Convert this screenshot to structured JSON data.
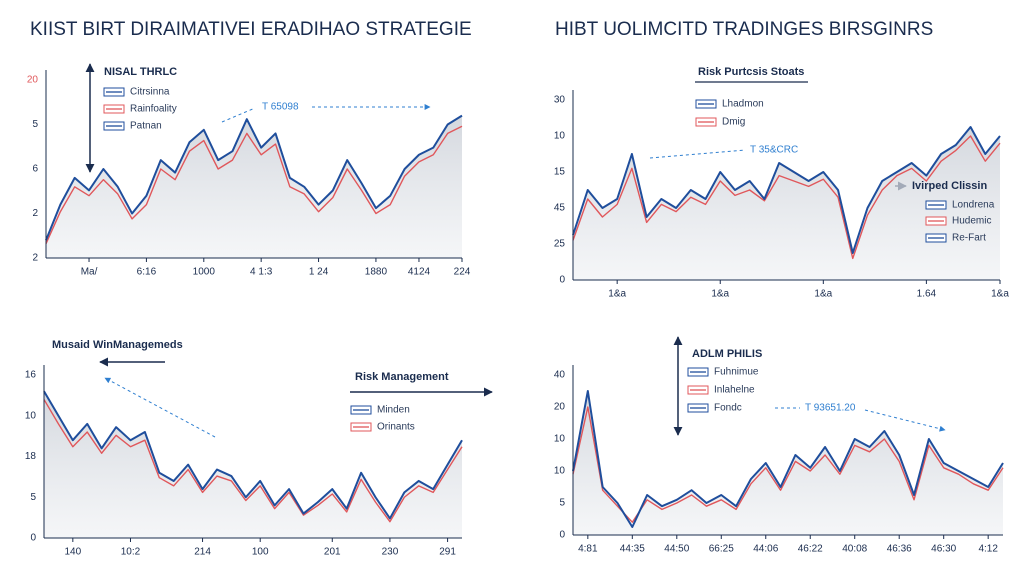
{
  "chart_data": [
    {
      "type": "line",
      "title": "KIIST BIRT DIRAIMATIVEI ERADIHAO STRATEGIE",
      "categories": [
        null,
        null,
        null,
        "Ma/",
        null,
        null,
        null,
        "6:16",
        null,
        null,
        null,
        "1000",
        null,
        null,
        null,
        "4 1:3",
        null,
        null,
        null,
        "1 24",
        null,
        null,
        null,
        "1880",
        null,
        null,
        "4124",
        null,
        null,
        "224"
      ],
      "ylim": [
        0,
        100
      ],
      "y_labels": [
        "20",
        "5",
        "6",
        "2",
        "2"
      ],
      "series": [
        {
          "color": "#1f4e9c",
          "values": [
            10,
            30,
            45,
            38,
            50,
            40,
            25,
            35,
            55,
            48,
            65,
            72,
            55,
            60,
            78,
            62,
            70,
            45,
            40,
            30,
            38,
            55,
            42,
            28,
            35,
            50,
            58,
            62,
            75,
            80
          ]
        },
        {
          "color": "#e0575b",
          "values": [
            8,
            26,
            40,
            35,
            44,
            36,
            22,
            30,
            50,
            44,
            60,
            66,
            50,
            55,
            70,
            58,
            64,
            40,
            36,
            26,
            34,
            50,
            38,
            25,
            30,
            46,
            54,
            58,
            70,
            74
          ]
        }
      ],
      "legends": [
        {
          "title": "NISAL THRLC",
          "items": [
            "Citrsinna",
            "Rainfoality",
            "Patnan"
          ]
        }
      ],
      "annotations": [
        "T 65098"
      ]
    },
    {
      "type": "line",
      "title": "HIBT UOLIMCITD TRADINGES BIRSGINRS",
      "categories": [
        null,
        null,
        null,
        "1&a",
        null,
        null,
        null,
        null,
        null,
        null,
        "1&a",
        null,
        null,
        null,
        null,
        null,
        null,
        "1&a",
        null,
        null,
        null,
        null,
        null,
        null,
        "1.64",
        null,
        null,
        null,
        null,
        "1&a"
      ],
      "ylim": [
        0,
        100
      ],
      "y_labels": [
        "30",
        "10",
        "15",
        "45",
        "25",
        "0"
      ],
      "series": [
        {
          "color": "#1f4e9c",
          "values": [
            25,
            50,
            40,
            45,
            70,
            35,
            45,
            40,
            50,
            45,
            60,
            50,
            55,
            45,
            65,
            60,
            55,
            60,
            50,
            15,
            40,
            55,
            60,
            65,
            58,
            70,
            75,
            85,
            70,
            80
          ]
        },
        {
          "color": "#e0575b",
          "values": [
            22,
            45,
            35,
            42,
            62,
            32,
            42,
            38,
            46,
            42,
            55,
            47,
            50,
            44,
            58,
            55,
            52,
            56,
            46,
            12,
            36,
            50,
            58,
            62,
            55,
            66,
            72,
            80,
            66,
            76
          ]
        }
      ],
      "legends": [
        {
          "title": "Risk Purtcsis Stoats",
          "items": [
            "Lhadmon",
            "Dmig"
          ]
        },
        {
          "title": "Ivirped Clissin",
          "items": [
            "Londrena",
            "Hudemic",
            "Re-Fart"
          ]
        }
      ],
      "annotations": [
        "T 35&CRC"
      ]
    },
    {
      "type": "line",
      "title": "Musaid WinManagemeds",
      "categories": [
        null,
        null,
        "140",
        null,
        null,
        null,
        "10:2",
        null,
        null,
        null,
        null,
        "214",
        null,
        null,
        null,
        "100",
        null,
        null,
        null,
        null,
        "201",
        null,
        null,
        null,
        "230",
        null,
        null,
        null,
        "291",
        null
      ],
      "ylim": [
        0,
        100
      ],
      "y_labels": [
        "16",
        "10",
        "18",
        "5",
        "0"
      ],
      "series": [
        {
          "color": "#1f4e9c",
          "values": [
            90,
            75,
            60,
            70,
            55,
            68,
            60,
            65,
            40,
            35,
            45,
            30,
            42,
            38,
            25,
            35,
            20,
            30,
            15,
            22,
            30,
            18,
            40,
            25,
            12,
            28,
            35,
            30,
            45,
            60
          ]
        },
        {
          "color": "#e0575b",
          "values": [
            85,
            70,
            56,
            65,
            52,
            63,
            56,
            60,
            37,
            32,
            42,
            28,
            38,
            35,
            23,
            32,
            18,
            28,
            14,
            20,
            27,
            16,
            36,
            22,
            10,
            25,
            32,
            28,
            42,
            56
          ]
        }
      ],
      "legends": [
        {
          "title": "Risk Management",
          "items": [
            "Minden",
            "Orinants"
          ]
        }
      ],
      "annotations": []
    },
    {
      "type": "line",
      "categories": [
        null,
        "4:81",
        null,
        null,
        "44:35",
        null,
        null,
        "44:50",
        null,
        null,
        "66:25",
        null,
        null,
        "44:06",
        null,
        null,
        "46:22",
        null,
        null,
        "40:08",
        null,
        null,
        "46:36",
        null,
        null,
        "46:30",
        null,
        null,
        "4:12",
        null
      ],
      "ylim": [
        0,
        100
      ],
      "y_labels": [
        "40",
        "20",
        "10",
        "10",
        "5",
        "0"
      ],
      "series": [
        {
          "color": "#1f4e9c",
          "values": [
            40,
            90,
            30,
            20,
            5,
            25,
            18,
            22,
            28,
            20,
            25,
            18,
            35,
            45,
            30,
            50,
            42,
            55,
            40,
            60,
            55,
            65,
            50,
            25,
            60,
            45,
            40,
            35,
            30,
            45
          ]
        },
        {
          "color": "#e0575b",
          "values": [
            38,
            80,
            28,
            18,
            8,
            22,
            16,
            20,
            25,
            18,
            22,
            16,
            32,
            42,
            28,
            46,
            40,
            50,
            38,
            56,
            52,
            60,
            46,
            22,
            56,
            42,
            38,
            32,
            28,
            42
          ]
        }
      ],
      "legends": [
        {
          "title": "ADLM PHILIS",
          "items": [
            "Fuhnimue",
            "Inlahelne",
            "Fondc"
          ]
        }
      ],
      "annotations": [
        "T 93651.20"
      ]
    }
  ]
}
